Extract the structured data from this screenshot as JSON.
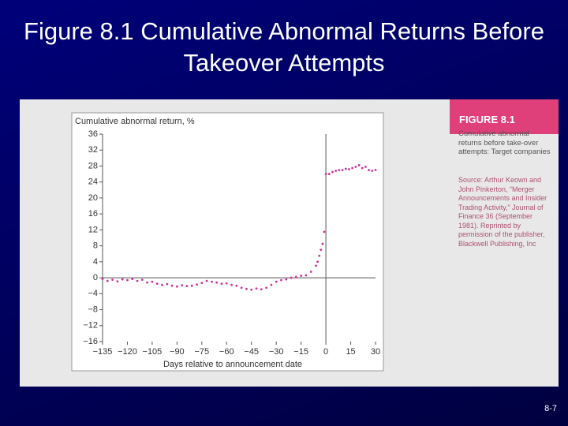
{
  "slide": {
    "title": "Figure 8.1 Cumulative Abnormal Returns Before Takeover Attempts",
    "page_number": "8-7"
  },
  "figure": {
    "label": "FIGURE 8.1",
    "caption": "Cumulative abnormal returns before take-over attempts: Target companies",
    "source": "Source: Arthur Keown and John Pinkerton, “Merger Announcements and Insider Trading Activity,” Journal of Finance 36 (September 1981). Reprinted by permission of the publisher, Blackwell Publishing, Inc"
  },
  "chart_data": {
    "type": "scatter",
    "ylabel": "Cumulative abnormal return, %",
    "xlabel": "Days relative to announcement date",
    "color": "#cc3399",
    "zero_lines": true,
    "x": [
      -135,
      -132,
      -129,
      -126,
      -123,
      -120,
      -117,
      -114,
      -111,
      -108,
      -105,
      -102,
      -99,
      -96,
      -93,
      -90,
      -87,
      -84,
      -81,
      -78,
      -75,
      -72,
      -69,
      -66,
      -63,
      -60,
      -57,
      -54,
      -51,
      -48,
      -45,
      -42,
      -39,
      -36,
      -33,
      -30,
      -27,
      -24,
      -21,
      -18,
      -15,
      -12,
      -9,
      -6,
      -5,
      -4,
      -3,
      -2,
      -1,
      0,
      2,
      4,
      6,
      8,
      10,
      12,
      14,
      16,
      18,
      20,
      22,
      24,
      26,
      28,
      30
    ],
    "values": [
      -0.3,
      -0.8,
      -0.5,
      -0.9,
      -0.4,
      -0.6,
      -0.3,
      -0.8,
      -0.5,
      -1.2,
      -1.0,
      -1.5,
      -1.8,
      -1.6,
      -2.0,
      -2.2,
      -1.9,
      -2.1,
      -2.0,
      -1.7,
      -1.3,
      -0.8,
      -1.0,
      -1.2,
      -1.5,
      -1.4,
      -1.8,
      -2.0,
      -2.5,
      -2.8,
      -3.0,
      -2.7,
      -2.9,
      -2.5,
      -1.8,
      -1.0,
      -0.6,
      -0.4,
      0.0,
      0.2,
      0.5,
      0.6,
      1.5,
      3.0,
      4.0,
      5.5,
      7.0,
      8.5,
      11.5,
      26.0,
      26.0,
      26.5,
      26.8,
      27.0,
      27.0,
      27.3,
      27.2,
      27.5,
      27.8,
      28.2,
      27.5,
      27.8,
      27.0,
      26.8,
      27.0
    ],
    "xlim": [
      -135,
      30
    ],
    "ylim": [
      -16,
      36
    ],
    "xticks": [
      {
        "value": -135,
        "label": "−135"
      },
      {
        "value": -120,
        "label": "−120"
      },
      {
        "value": -105,
        "label": "−105"
      },
      {
        "value": -90,
        "label": "−90"
      },
      {
        "value": -75,
        "label": "−75"
      },
      {
        "value": -60,
        "label": "−60"
      },
      {
        "value": -45,
        "label": "−45"
      },
      {
        "value": -30,
        "label": "−30"
      },
      {
        "value": -15,
        "label": "−15"
      },
      0,
      15,
      30
    ],
    "yticks": [
      {
        "value": -16,
        "label": "−16"
      },
      {
        "value": -12,
        "label": "−12"
      },
      {
        "value": -8,
        "label": "−8"
      },
      {
        "value": -4,
        "label": "−4"
      },
      0,
      4,
      8,
      12,
      16,
      20,
      24,
      28,
      32,
      36
    ]
  }
}
